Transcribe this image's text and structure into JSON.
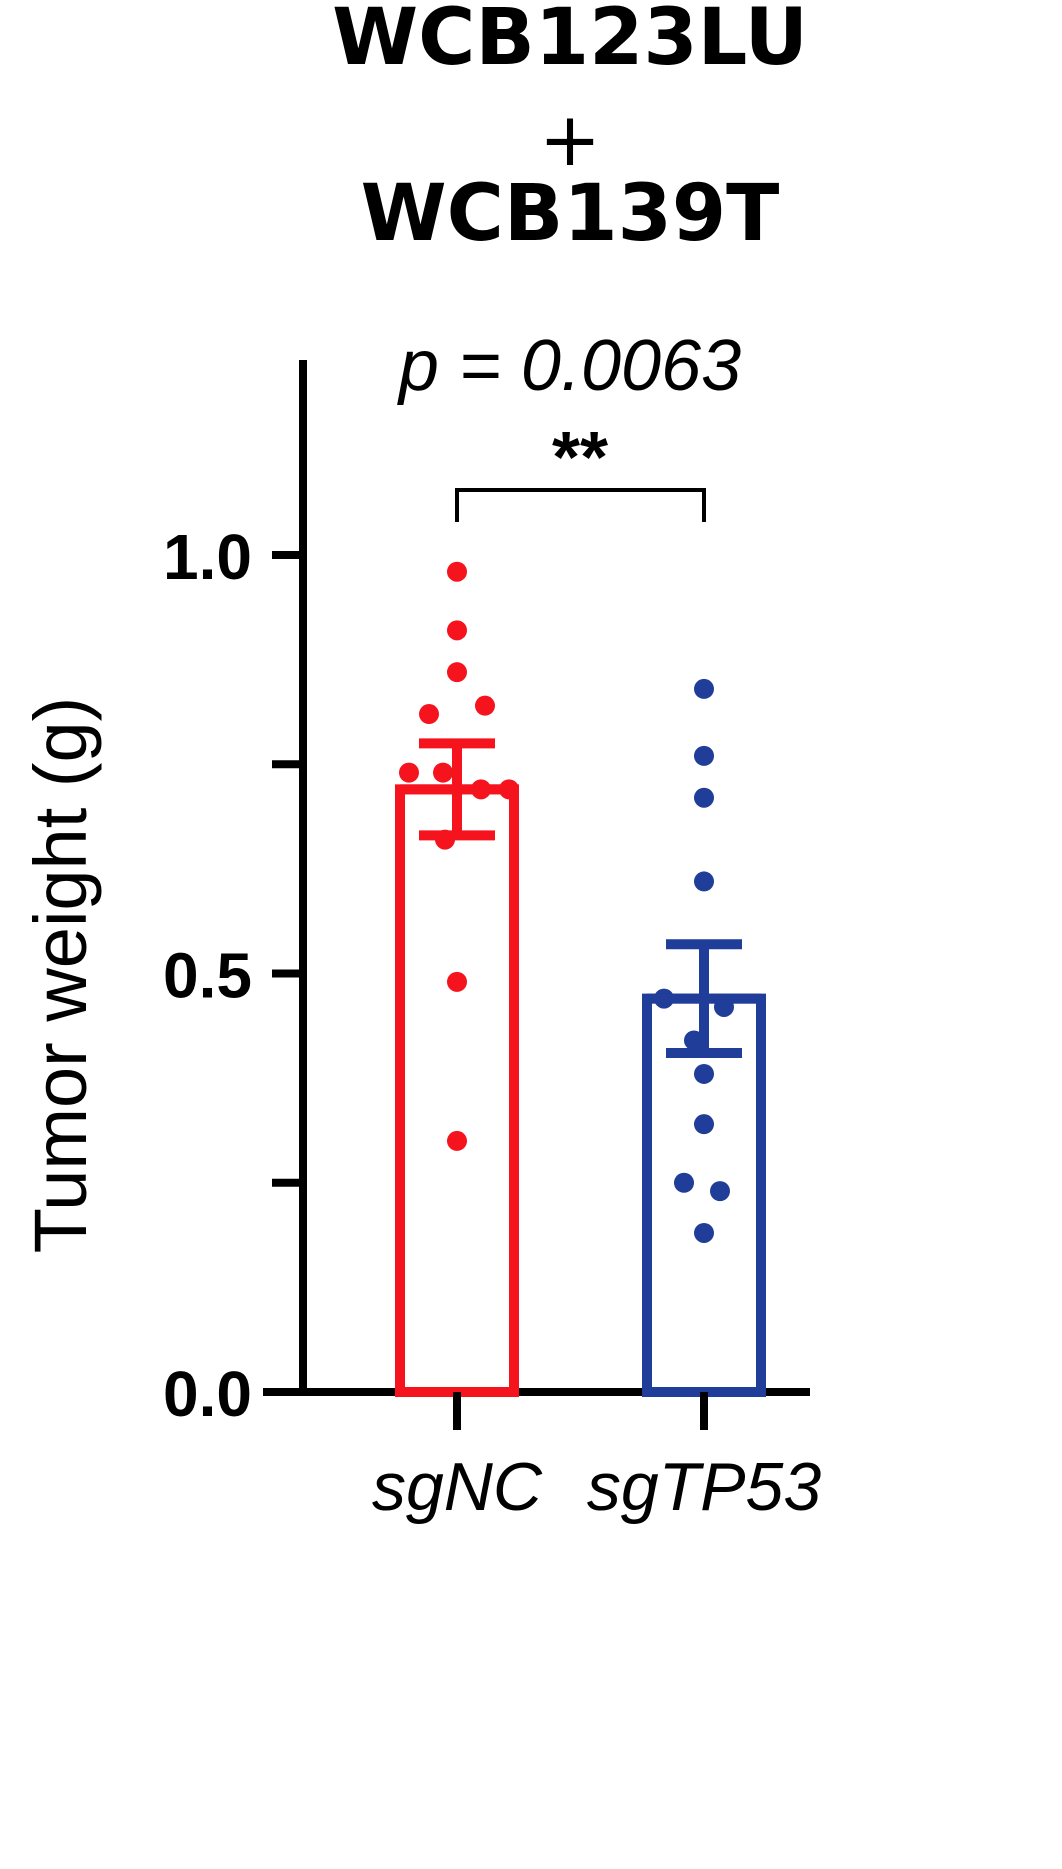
{
  "title_lines": [
    "WCB123LU",
    "+",
    "WCB139T"
  ],
  "annotation": {
    "p_value_text": "p = 0.0063",
    "significance": "**"
  },
  "chart_data": {
    "type": "bar",
    "title": "WCB123LU + WCB139T",
    "ylabel": "Tumor weight (g)",
    "xlabel": "",
    "ylim": [
      0,
      1.25
    ],
    "yticks": [
      0.0,
      0.25,
      0.5,
      0.75,
      1.0
    ],
    "ytick_labels": [
      "0.0",
      "",
      "0.5",
      "",
      "1.0"
    ],
    "categories": [
      "sgNC",
      "sgTP53"
    ],
    "colors": [
      "#f5141e",
      "#1f3d99"
    ],
    "means": [
      0.72,
      0.47
    ],
    "sem": [
      0.055,
      0.065
    ],
    "points": [
      [
        0.98,
        0.91,
        0.86,
        0.81,
        0.82,
        0.74,
        0.74,
        0.72,
        0.72,
        0.66,
        0.49,
        0.3
      ],
      [
        0.84,
        0.76,
        0.71,
        0.61,
        0.47,
        0.46,
        0.42,
        0.38,
        0.32,
        0.25,
        0.24,
        0.19
      ]
    ],
    "significance": {
      "between": [
        "sgNC",
        "sgTP53"
      ],
      "label": "**",
      "p_value": 0.0063
    },
    "grid": false,
    "legend": "none"
  }
}
